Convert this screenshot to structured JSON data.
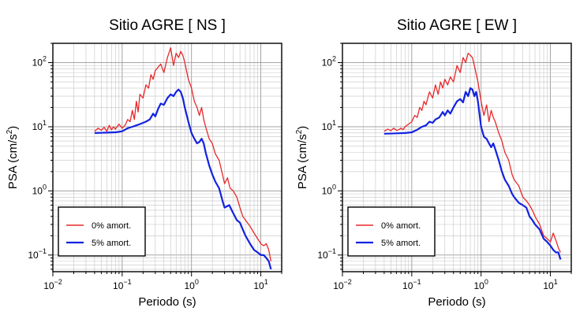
{
  "chart_data": [
    {
      "type": "line",
      "title": "Sitio AGRE [ NS ]",
      "xlabel": "Periodo (s)",
      "ylabel_text": "PSA (cm/s",
      "ylabel_sup": "2",
      "ylabel_close": ")",
      "xscale": "log",
      "yscale": "log",
      "xlim": [
        0.01,
        20
      ],
      "ylim": [
        0.055,
        200
      ],
      "grid": true,
      "legend_position": "bottom-left",
      "x_ticks": [
        {
          "value": 0.01,
          "base": "10",
          "exp": "−2"
        },
        {
          "value": 0.1,
          "base": "10",
          "exp": "−1"
        },
        {
          "value": 1,
          "base": "10",
          "exp": "0"
        },
        {
          "value": 10,
          "base": "10",
          "exp": "1"
        }
      ],
      "y_ticks": [
        {
          "value": 0.1,
          "base": "10",
          "exp": "−1"
        },
        {
          "value": 1,
          "base": "10",
          "exp": "0"
        },
        {
          "value": 10,
          "base": "10",
          "exp": "1"
        },
        {
          "value": 100,
          "base": "10",
          "exp": "2"
        }
      ],
      "series": [
        {
          "name": "0% amort.",
          "color": "#e8282a",
          "x": [
            0.04,
            0.045,
            0.05,
            0.055,
            0.06,
            0.065,
            0.07,
            0.075,
            0.08,
            0.09,
            0.1,
            0.11,
            0.12,
            0.13,
            0.14,
            0.15,
            0.16,
            0.17,
            0.18,
            0.2,
            0.22,
            0.24,
            0.26,
            0.28,
            0.3,
            0.33,
            0.36,
            0.4,
            0.45,
            0.5,
            0.55,
            0.6,
            0.65,
            0.7,
            0.75,
            0.8,
            0.9,
            1.0,
            1.1,
            1.2,
            1.3,
            1.4,
            1.5,
            1.6,
            1.8,
            2.0,
            2.2,
            2.5,
            2.8,
            3.0,
            3.3,
            3.6,
            4.0,
            4.5,
            5.0,
            5.5,
            6.0,
            7.0,
            8.0,
            9.0,
            10,
            11,
            12,
            13,
            14
          ],
          "y": [
            8.5,
            9.5,
            8.8,
            9.8,
            8.5,
            10.5,
            9.0,
            10,
            9.2,
            11,
            9.5,
            10.5,
            13,
            12,
            18,
            13,
            25,
            17,
            32,
            28,
            45,
            40,
            65,
            55,
            75,
            85,
            95,
            70,
            120,
            170,
            90,
            140,
            120,
            150,
            130,
            100,
            55,
            40,
            25,
            20,
            15,
            20,
            13,
            10,
            6.5,
            5.5,
            3.8,
            3.0,
            1.8,
            1.3,
            1.6,
            1.1,
            1.0,
            0.8,
            0.55,
            0.4,
            0.35,
            0.28,
            0.22,
            0.18,
            0.15,
            0.14,
            0.15,
            0.12,
            0.08
          ]
        },
        {
          "name": "5% amort.",
          "color": "#1222e0",
          "x": [
            0.04,
            0.06,
            0.08,
            0.1,
            0.12,
            0.14,
            0.16,
            0.18,
            0.2,
            0.22,
            0.25,
            0.28,
            0.3,
            0.33,
            0.36,
            0.4,
            0.45,
            0.5,
            0.55,
            0.6,
            0.65,
            0.7,
            0.75,
            0.8,
            0.9,
            1.0,
            1.1,
            1.2,
            1.3,
            1.4,
            1.5,
            1.6,
            1.8,
            2.0,
            2.2,
            2.5,
            2.8,
            3.0,
            3.5,
            4.0,
            4.5,
            5.0,
            5.5,
            6.0,
            7.0,
            8.0,
            9.0,
            10,
            11,
            12,
            13,
            14
          ],
          "y": [
            8.0,
            8.1,
            8.2,
            8.5,
            9.5,
            10,
            10.5,
            11,
            11.5,
            12,
            13,
            16,
            14.5,
            19,
            23,
            22,
            28,
            32,
            30,
            35,
            38,
            35,
            28,
            20,
            12,
            8.0,
            6.5,
            5.5,
            5.8,
            6.5,
            5.5,
            4.0,
            2.5,
            1.8,
            1.4,
            1.1,
            0.7,
            0.55,
            0.6,
            0.45,
            0.35,
            0.32,
            0.25,
            0.2,
            0.15,
            0.12,
            0.11,
            0.1,
            0.1,
            0.09,
            0.08,
            0.06
          ]
        }
      ]
    },
    {
      "type": "line",
      "title": "Sitio AGRE [ EW ]",
      "xlabel": "Periodo (s)",
      "ylabel_text": "PSA (cm/s",
      "ylabel_sup": "2",
      "ylabel_close": ")",
      "xscale": "log",
      "yscale": "log",
      "xlim": [
        0.01,
        20
      ],
      "ylim": [
        0.055,
        200
      ],
      "grid": true,
      "legend_position": "bottom-left",
      "x_ticks": [
        {
          "value": 0.01,
          "base": "10",
          "exp": "−2"
        },
        {
          "value": 0.1,
          "base": "10",
          "exp": "−1"
        },
        {
          "value": 1,
          "base": "10",
          "exp": "0"
        },
        {
          "value": 10,
          "base": "10",
          "exp": "1"
        }
      ],
      "y_ticks": [
        {
          "value": 0.1,
          "base": "10",
          "exp": "−1"
        },
        {
          "value": 1,
          "base": "10",
          "exp": "0"
        },
        {
          "value": 10,
          "base": "10",
          "exp": "1"
        },
        {
          "value": 100,
          "base": "10",
          "exp": "2"
        }
      ],
      "series": [
        {
          "name": "0% amort.",
          "color": "#e8282a",
          "x": [
            0.04,
            0.045,
            0.05,
            0.055,
            0.06,
            0.065,
            0.07,
            0.075,
            0.08,
            0.09,
            0.1,
            0.11,
            0.12,
            0.13,
            0.14,
            0.15,
            0.16,
            0.18,
            0.2,
            0.22,
            0.24,
            0.26,
            0.28,
            0.3,
            0.33,
            0.36,
            0.4,
            0.45,
            0.5,
            0.55,
            0.6,
            0.65,
            0.7,
            0.75,
            0.8,
            0.9,
            1.0,
            1.1,
            1.2,
            1.3,
            1.4,
            1.5,
            1.6,
            1.8,
            2.0,
            2.2,
            2.5,
            2.8,
            3.0,
            3.5,
            4.0,
            4.5,
            5.0,
            5.5,
            6.0,
            7.0,
            8.0,
            9.0,
            10,
            11,
            12,
            13,
            14
          ],
          "y": [
            8.5,
            9.2,
            8.7,
            9.5,
            8.8,
            9.0,
            9.5,
            9.0,
            10,
            11,
            12,
            15,
            14,
            20,
            18,
            25,
            22,
            35,
            28,
            45,
            32,
            50,
            40,
            55,
            45,
            60,
            50,
            90,
            70,
            120,
            100,
            140,
            130,
            120,
            90,
            50,
            25,
            15,
            22,
            12,
            18,
            14,
            12,
            8,
            6,
            4,
            3,
            1.8,
            1.5,
            1.2,
            0.8,
            0.7,
            0.6,
            0.5,
            0.4,
            0.3,
            0.2,
            0.18,
            0.16,
            0.22,
            0.17,
            0.13,
            0.11
          ]
        },
        {
          "name": "5% amort.",
          "color": "#1222e0",
          "x": [
            0.04,
            0.06,
            0.08,
            0.1,
            0.12,
            0.14,
            0.16,
            0.18,
            0.2,
            0.22,
            0.25,
            0.28,
            0.3,
            0.33,
            0.36,
            0.4,
            0.45,
            0.5,
            0.55,
            0.6,
            0.65,
            0.7,
            0.75,
            0.8,
            0.85,
            0.9,
            1.0,
            1.1,
            1.2,
            1.3,
            1.4,
            1.5,
            1.6,
            1.8,
            2.0,
            2.2,
            2.5,
            2.8,
            3.0,
            3.5,
            4.0,
            4.5,
            5.0,
            5.5,
            6.0,
            7.0,
            8.0,
            9.0,
            10,
            11,
            12,
            13,
            14
          ],
          "y": [
            7.8,
            7.9,
            8.0,
            8.2,
            9.0,
            10,
            10.5,
            12,
            11.5,
            13,
            14,
            17,
            15,
            18,
            16,
            20,
            25,
            27,
            24,
            35,
            30,
            40,
            38,
            30,
            35,
            25,
            10,
            7,
            6.5,
            5.5,
            4.8,
            5.5,
            4.5,
            3,
            2,
            1.5,
            1.2,
            0.9,
            0.8,
            0.65,
            0.6,
            0.55,
            0.4,
            0.35,
            0.3,
            0.25,
            0.18,
            0.16,
            0.14,
            0.12,
            0.11,
            0.11,
            0.085
          ]
        }
      ]
    }
  ]
}
